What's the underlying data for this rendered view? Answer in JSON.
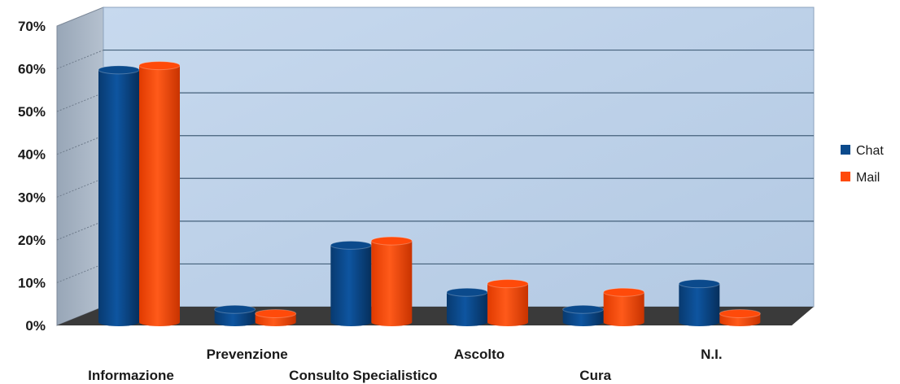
{
  "chart_data": {
    "type": "bar",
    "categories": [
      "Informazione",
      "Prevenzione",
      "Consulto Specialistico",
      "Ascolto",
      "Cura",
      "N.I."
    ],
    "series": [
      {
        "name": "Chat",
        "values": [
          59,
          3,
          18,
          7,
          3,
          9
        ],
        "color": "#0b4a8c"
      },
      {
        "name": "Mail",
        "values": [
          60,
          2,
          19,
          9,
          7,
          2
        ],
        "color": "#ff4a0a"
      }
    ],
    "yticks": [
      "0%",
      "10%",
      "20%",
      "30%",
      "40%",
      "50%",
      "60%",
      "70%"
    ],
    "ylim": [
      0,
      70
    ],
    "y_unit": "%",
    "grid": true,
    "three_d": true,
    "legend_position": "right",
    "colors": {
      "wall": "#c3d5ea",
      "side_wall": "#a9b6c6",
      "floor": "#3a3a3a",
      "grid": "#44607a"
    }
  }
}
